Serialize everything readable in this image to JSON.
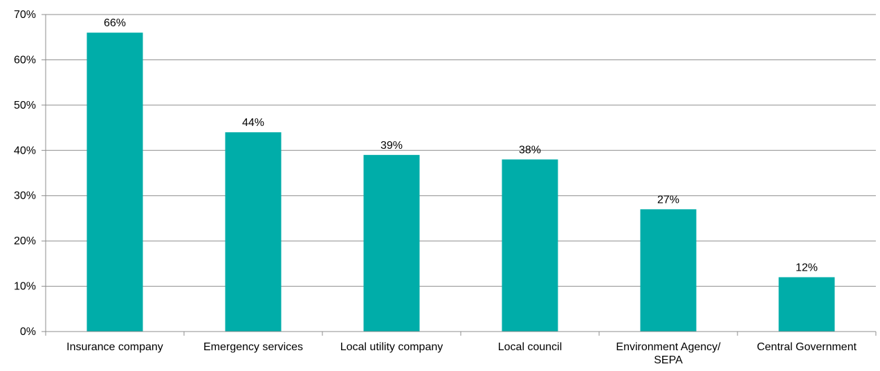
{
  "chart_data": {
    "type": "bar",
    "title": "",
    "xlabel": "",
    "ylabel": "",
    "categories": [
      "Insurance company",
      "Emergency services",
      "Local utility company",
      "Local council",
      "Environment Agency/ SEPA",
      "Central Government"
    ],
    "category_lines": [
      [
        "Insurance company"
      ],
      [
        "Emergency services"
      ],
      [
        "Local utility company"
      ],
      [
        "Local council"
      ],
      [
        "Environment Agency/",
        "SEPA"
      ],
      [
        "Central Government"
      ]
    ],
    "series": [
      {
        "values": [
          66,
          44,
          39,
          38,
          27,
          12
        ],
        "data_labels": [
          "66%",
          "44%",
          "39%",
          "38%",
          "27%",
          "12%"
        ]
      }
    ],
    "ylim": [
      0,
      70
    ],
    "y_ticks": [
      0,
      10,
      20,
      30,
      40,
      50,
      60,
      70
    ],
    "y_tick_labels": [
      "0%",
      "10%",
      "20%",
      "30%",
      "40%",
      "50%",
      "60%",
      "70%"
    ],
    "grid": true,
    "legend": "none",
    "colors": {
      "bar": "#00ADA9",
      "grid": "#8C8C8C",
      "axis": "#8C8C8C",
      "text": "#000000"
    }
  }
}
